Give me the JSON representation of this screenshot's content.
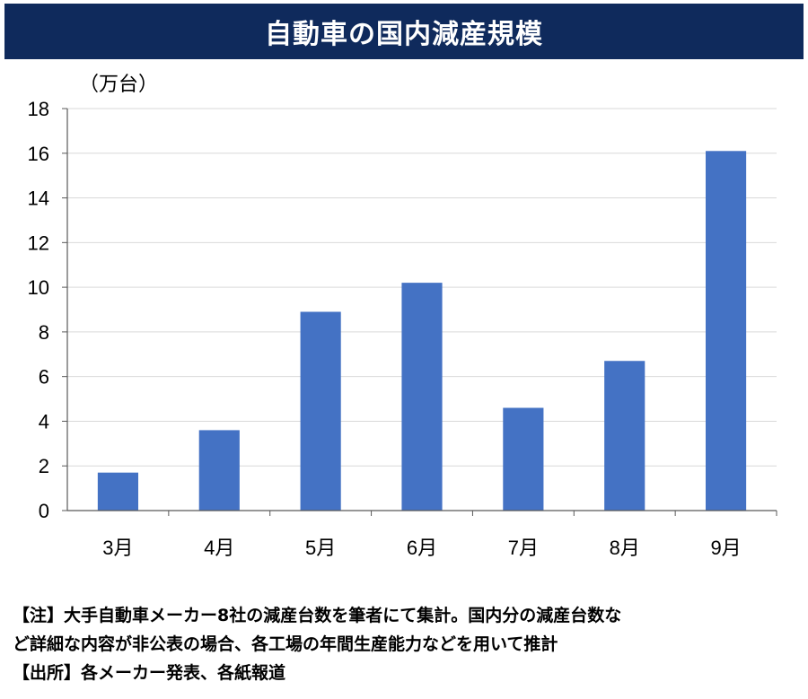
{
  "title": "自動車の国内減産規模",
  "unit_label": "（万台）",
  "chart_data": {
    "type": "bar",
    "title": "自動車の国内減産規模",
    "ylabel": "（万台）",
    "xlabel": "",
    "categories": [
      "3月",
      "4月",
      "5月",
      "6月",
      "7月",
      "8月",
      "9月"
    ],
    "values": [
      1.7,
      3.6,
      8.9,
      10.2,
      4.6,
      6.7,
      16.1
    ],
    "ylim": [
      0,
      18
    ],
    "yticks": [
      "0",
      "2",
      "4",
      "6",
      "8",
      "10",
      "12",
      "14",
      "16",
      "18"
    ],
    "grid": true,
    "bar_color": "#4472c4"
  },
  "notes": {
    "line1": "【注】大手自動車メーカー8社の減産台数を筆者にて集計。国内分の減産台数な",
    "line2": "ど詳細な内容が非公表の場合、各工場の年間生産能力などを用いて推計",
    "line3": "【出所】各メーカー発表、各紙報道"
  }
}
